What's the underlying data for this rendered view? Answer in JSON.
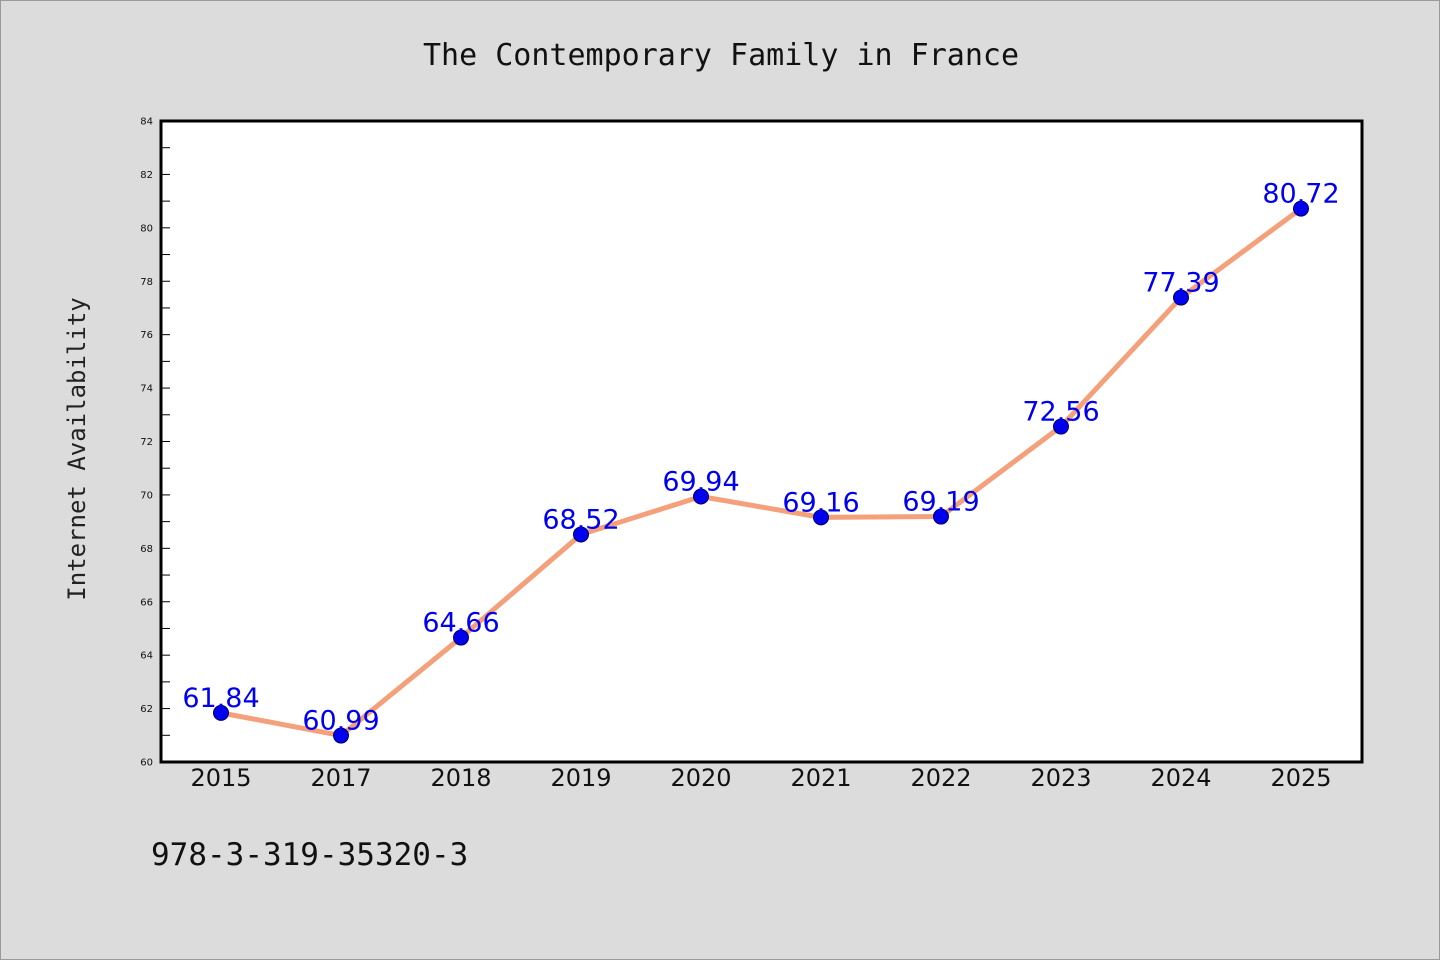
{
  "chart_data": {
    "type": "line",
    "title": "The Contemporary Family in France",
    "xlabel": "",
    "ylabel": "Internet Availability",
    "categories": [
      "2015",
      "2017",
      "2018",
      "2019",
      "2020",
      "2021",
      "2022",
      "2023",
      "2024",
      "2025"
    ],
    "series": [
      {
        "values": [
          61.84,
          60.99,
          64.66,
          68.52,
          69.94,
          69.16,
          69.19,
          72.56,
          77.39,
          80.72
        ],
        "labels": [
          "61.84",
          "60.99",
          "64.66",
          "68.52",
          "69.94",
          "69.16",
          "69.19",
          "72.56",
          "77.39",
          "80.72"
        ]
      }
    ],
    "ylim": [
      60,
      84
    ],
    "yticks": [
      60,
      62,
      64,
      66,
      68,
      70,
      72,
      74,
      76,
      78,
      80,
      82,
      84
    ],
    "grid": false,
    "legend": "none",
    "colors": {
      "line": "#f4a07a",
      "marker": "#0000ee",
      "data_label": "#0000ee",
      "plot_background": "#ffffff",
      "figure_background": "#dcdcdc"
    }
  },
  "footnote": "978-3-319-35320-3"
}
